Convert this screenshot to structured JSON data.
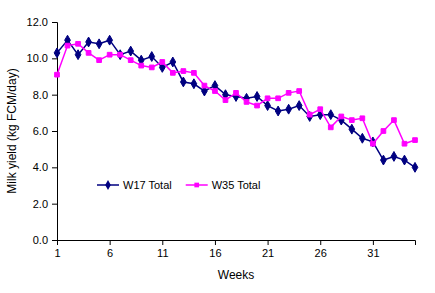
{
  "chart_data": {
    "type": "line",
    "x_label": "Weeks",
    "y_label": "Milk yield (kg FCM/day)",
    "x": [
      1,
      2,
      3,
      4,
      5,
      6,
      7,
      8,
      9,
      10,
      11,
      12,
      13,
      14,
      15,
      16,
      17,
      18,
      19,
      20,
      21,
      22,
      23,
      24,
      25,
      26,
      27,
      28,
      29,
      30,
      31,
      32,
      33,
      34,
      35
    ],
    "series": [
      {
        "name": "W17 Total",
        "color": "#000080",
        "marker": "diamond",
        "values": [
          10.3,
          11.0,
          10.2,
          10.9,
          10.8,
          11.0,
          10.2,
          10.4,
          9.9,
          10.1,
          9.5,
          9.8,
          8.7,
          8.6,
          8.2,
          8.5,
          8.0,
          7.9,
          7.8,
          7.9,
          7.4,
          7.1,
          7.2,
          7.4,
          6.8,
          6.9,
          6.9,
          6.6,
          6.1,
          5.6,
          5.4,
          4.4,
          4.6,
          4.4,
          4.0
        ]
      },
      {
        "name": "W35 Total",
        "color": "#ff00ff",
        "marker": "square",
        "values": [
          9.1,
          10.7,
          10.8,
          10.3,
          9.9,
          10.2,
          10.2,
          9.9,
          9.6,
          9.5,
          9.8,
          9.2,
          9.3,
          9.2,
          8.5,
          8.2,
          7.7,
          8.1,
          7.6,
          7.4,
          7.8,
          7.8,
          8.1,
          8.2,
          6.9,
          7.2,
          6.2,
          6.8,
          6.6,
          6.7,
          5.3,
          6.0,
          6.6,
          5.3,
          5.5
        ]
      }
    ],
    "xlim": [
      1,
      35
    ],
    "xticks": [
      1,
      6,
      11,
      16,
      21,
      26,
      31
    ],
    "ylim": [
      0,
      12
    ],
    "yticks": [
      {
        "value": 0,
        "label": "0.0"
      },
      {
        "value": 2,
        "label": "2.0"
      },
      {
        "value": 4,
        "label": "4.0"
      },
      {
        "value": 6,
        "label": "6.0"
      },
      {
        "value": 8,
        "label": "8.0"
      },
      {
        "value": 10,
        "label": "10.0"
      },
      {
        "value": 12,
        "label": "12.0"
      }
    ],
    "grid": false,
    "legend": "lower left"
  }
}
